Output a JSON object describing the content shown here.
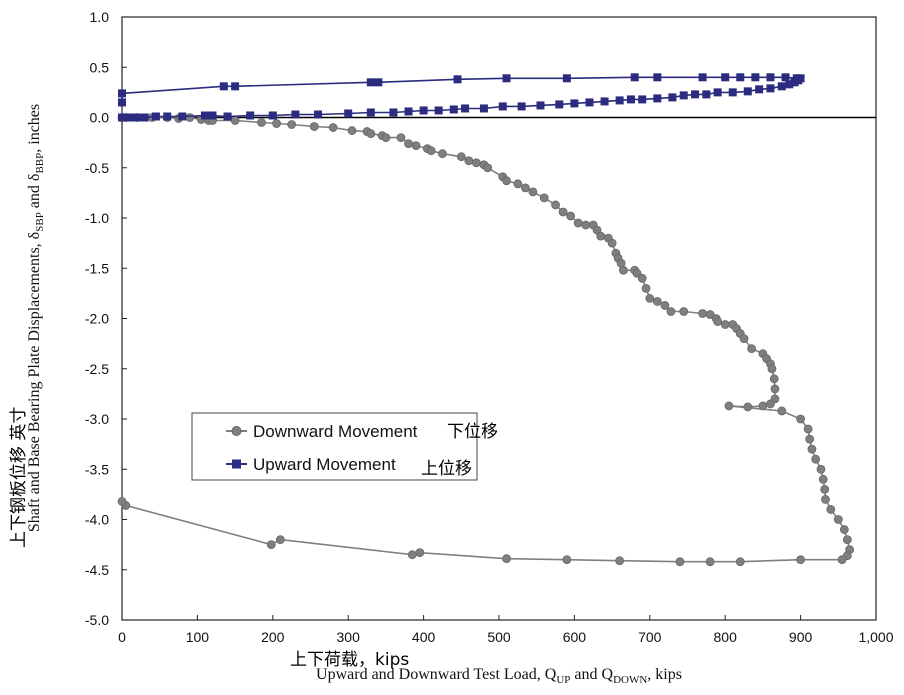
{
  "chart_data": {
    "type": "line",
    "xlabel": "Upward and Downward Test Load, Q",
    "xlabel_sub1": "UP",
    "xlabel_mid": " and Q",
    "xlabel_sub2": "DOWN",
    "xlabel_end": ", kips",
    "xlabel_cn": "上下荷载，kips",
    "ylabel_main": "Shaft and Base Bearing Plate Displacements, δ",
    "ylabel_sub1": "SBP",
    "ylabel_mid": " and δ",
    "ylabel_sub2": "BBP",
    "ylabel_end": ", inches",
    "ylabel_cn": "上下钢板位移 英寸",
    "xlim": [
      0,
      1000
    ],
    "ylim": [
      -5.0,
      1.0
    ],
    "x_ticks": [
      0,
      100,
      200,
      300,
      400,
      500,
      600,
      700,
      800,
      900,
      1000
    ],
    "x_tick_labels": [
      "0",
      "100",
      "200",
      "300",
      "400",
      "500",
      "600",
      "700",
      "800",
      "900",
      "1,000"
    ],
    "y_ticks": [
      1.0,
      0.5,
      0.0,
      -0.5,
      -1.0,
      -1.5,
      -2.0,
      -2.5,
      -3.0,
      -3.5,
      -4.0,
      -4.5,
      -5.0
    ],
    "y_tick_labels": [
      "1.0",
      "0.5",
      "0.0",
      "-0.5",
      "-1.0",
      "-1.5",
      "-2.0",
      "-2.5",
      "-3.0",
      "-3.5",
      "-4.0",
      "-4.5",
      "-5.0"
    ],
    "grid": false,
    "legend_position": "lower-left",
    "series": [
      {
        "name": "Downward Movement",
        "name_cn": "下位移",
        "color": "#7f7f7f",
        "marker": "circle",
        "points": [
          [
            0,
            0.0
          ],
          [
            5,
            0.0
          ],
          [
            20,
            0.0
          ],
          [
            40,
            0.0
          ],
          [
            60,
            0.0
          ],
          [
            75,
            -0.01
          ],
          [
            90,
            0.0
          ],
          [
            105,
            -0.02
          ],
          [
            115,
            -0.03
          ],
          [
            120,
            -0.03
          ],
          [
            150,
            -0.03
          ],
          [
            185,
            -0.05
          ],
          [
            205,
            -0.06
          ],
          [
            225,
            -0.07
          ],
          [
            255,
            -0.09
          ],
          [
            280,
            -0.1
          ],
          [
            305,
            -0.13
          ],
          [
            325,
            -0.14
          ],
          [
            330,
            -0.16
          ],
          [
            345,
            -0.18
          ],
          [
            350,
            -0.2
          ],
          [
            370,
            -0.2
          ],
          [
            380,
            -0.26
          ],
          [
            390,
            -0.28
          ],
          [
            405,
            -0.31
          ],
          [
            410,
            -0.33
          ],
          [
            425,
            -0.36
          ],
          [
            450,
            -0.39
          ],
          [
            460,
            -0.43
          ],
          [
            470,
            -0.45
          ],
          [
            480,
            -0.47
          ],
          [
            485,
            -0.5
          ],
          [
            505,
            -0.59
          ],
          [
            510,
            -0.63
          ],
          [
            525,
            -0.66
          ],
          [
            535,
            -0.7
          ],
          [
            545,
            -0.74
          ],
          [
            560,
            -0.8
          ],
          [
            575,
            -0.87
          ],
          [
            585,
            -0.94
          ],
          [
            595,
            -0.98
          ],
          [
            605,
            -1.05
          ],
          [
            615,
            -1.07
          ],
          [
            625,
            -1.07
          ],
          [
            630,
            -1.12
          ],
          [
            635,
            -1.18
          ],
          [
            645,
            -1.2
          ],
          [
            650,
            -1.25
          ],
          [
            655,
            -1.35
          ],
          [
            658,
            -1.4
          ],
          [
            662,
            -1.45
          ],
          [
            665,
            -1.52
          ],
          [
            680,
            -1.52
          ],
          [
            683,
            -1.55
          ],
          [
            690,
            -1.6
          ],
          [
            695,
            -1.7
          ],
          [
            700,
            -1.8
          ],
          [
            710,
            -1.83
          ],
          [
            720,
            -1.87
          ],
          [
            728,
            -1.93
          ],
          [
            745,
            -1.93
          ],
          [
            770,
            -1.95
          ],
          [
            780,
            -1.96
          ],
          [
            788,
            -2.0
          ],
          [
            790,
            -2.03
          ],
          [
            800,
            -2.06
          ],
          [
            810,
            -2.06
          ],
          [
            815,
            -2.1
          ],
          [
            820,
            -2.15
          ],
          [
            825,
            -2.2
          ],
          [
            835,
            -2.3
          ],
          [
            850,
            -2.35
          ],
          [
            855,
            -2.4
          ],
          [
            860,
            -2.45
          ],
          [
            862,
            -2.5
          ],
          [
            865,
            -2.6
          ],
          [
            866,
            -2.7
          ],
          [
            866,
            -2.8
          ],
          [
            860,
            -2.85
          ],
          [
            850,
            -2.87
          ],
          [
            830,
            -2.88
          ],
          [
            805,
            -2.87
          ],
          [
            875,
            -2.92
          ],
          [
            900,
            -3.0
          ],
          [
            910,
            -3.1
          ],
          [
            912,
            -3.2
          ],
          [
            915,
            -3.3
          ],
          [
            920,
            -3.4
          ],
          [
            927,
            -3.5
          ],
          [
            930,
            -3.6
          ],
          [
            932,
            -3.7
          ],
          [
            933,
            -3.8
          ],
          [
            940,
            -3.9
          ],
          [
            950,
            -4.0
          ],
          [
            958,
            -4.1
          ],
          [
            962,
            -4.2
          ],
          [
            965,
            -4.3
          ],
          [
            962,
            -4.36
          ],
          [
            955,
            -4.4
          ],
          [
            900,
            -4.4
          ],
          [
            820,
            -4.42
          ],
          [
            780,
            -4.42
          ],
          [
            740,
            -4.42
          ],
          [
            660,
            -4.41
          ],
          [
            590,
            -4.4
          ],
          [
            510,
            -4.39
          ],
          [
            395,
            -4.33
          ],
          [
            385,
            -4.35
          ],
          [
            210,
            -4.2
          ],
          [
            198,
            -4.25
          ],
          [
            5,
            -3.86
          ],
          [
            0,
            -3.82
          ]
        ]
      },
      {
        "name": "Upward Movement",
        "name_cn": "上位移",
        "color": "#2b2b7f",
        "marker": "square",
        "points": [
          [
            0,
            0.0
          ],
          [
            10,
            0.0
          ],
          [
            20,
            0.0
          ],
          [
            30,
            0.0
          ],
          [
            45,
            0.01
          ],
          [
            60,
            0.01
          ],
          [
            80,
            0.01
          ],
          [
            110,
            0.02
          ],
          [
            120,
            0.02
          ],
          [
            140,
            0.01
          ],
          [
            170,
            0.02
          ],
          [
            200,
            0.02
          ],
          [
            230,
            0.03
          ],
          [
            260,
            0.03
          ],
          [
            300,
            0.04
          ],
          [
            330,
            0.05
          ],
          [
            360,
            0.05
          ],
          [
            380,
            0.06
          ],
          [
            400,
            0.07
          ],
          [
            420,
            0.07
          ],
          [
            440,
            0.08
          ],
          [
            455,
            0.09
          ],
          [
            480,
            0.09
          ],
          [
            505,
            0.11
          ],
          [
            530,
            0.11
          ],
          [
            555,
            0.12
          ],
          [
            580,
            0.13
          ],
          [
            600,
            0.14
          ],
          [
            620,
            0.15
          ],
          [
            640,
            0.16
          ],
          [
            660,
            0.17
          ],
          [
            675,
            0.18
          ],
          [
            690,
            0.18
          ],
          [
            710,
            0.19
          ],
          [
            730,
            0.2
          ],
          [
            745,
            0.22
          ],
          [
            760,
            0.23
          ],
          [
            775,
            0.23
          ],
          [
            790,
            0.25
          ],
          [
            810,
            0.25
          ],
          [
            830,
            0.26
          ],
          [
            845,
            0.28
          ],
          [
            860,
            0.29
          ],
          [
            875,
            0.31
          ],
          [
            885,
            0.33
          ],
          [
            892,
            0.35
          ],
          [
            897,
            0.37
          ],
          [
            900,
            0.39
          ],
          [
            895,
            0.39
          ],
          [
            880,
            0.4
          ],
          [
            860,
            0.4
          ],
          [
            840,
            0.4
          ],
          [
            820,
            0.4
          ],
          [
            800,
            0.4
          ],
          [
            770,
            0.4
          ],
          [
            710,
            0.4
          ],
          [
            680,
            0.4
          ],
          [
            590,
            0.39
          ],
          [
            510,
            0.39
          ],
          [
            445,
            0.38
          ],
          [
            340,
            0.35
          ],
          [
            330,
            0.35
          ],
          [
            150,
            0.31
          ],
          [
            135,
            0.31
          ],
          [
            0,
            0.24
          ],
          [
            0,
            0.15
          ]
        ]
      }
    ]
  }
}
